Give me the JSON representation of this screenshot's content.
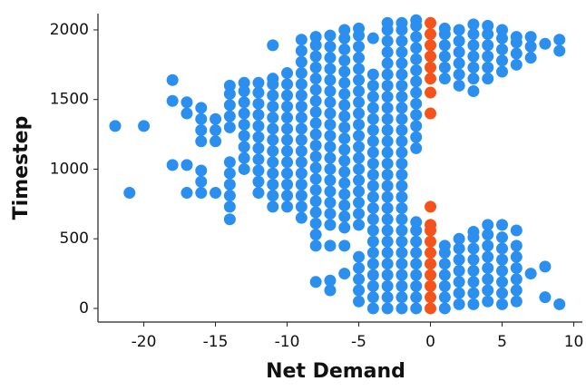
{
  "chart_data": {
    "type": "scatter",
    "xlabel": "Net Demand",
    "ylabel": "Timestep",
    "xlim": [
      -23.2,
      10.6
    ],
    "ylim": [
      -98,
      2117
    ],
    "xticks": [
      -20,
      -15,
      -10,
      -5,
      0,
      5,
      10
    ],
    "yticks": [
      0,
      500,
      1000,
      1500,
      2000
    ],
    "series": [
      {
        "color": "#2b8ff0",
        "x": [
          -22,
          -21,
          -20,
          -18,
          -18,
          -18,
          -17,
          -17,
          -17,
          -17,
          -16,
          -16,
          -16,
          -16,
          -16,
          -16,
          -16,
          -15,
          -15,
          -15,
          -15,
          -14,
          -14,
          -14,
          -14,
          -14,
          -14,
          -14,
          -14,
          -14,
          -14,
          -14,
          -13,
          -13,
          -13,
          -13,
          -13,
          -13,
          -13,
          -13,
          -13,
          -12,
          -12,
          -12,
          -12,
          -12,
          -12,
          -12,
          -12,
          -12,
          -12,
          -12,
          -11,
          -11,
          -11,
          -11,
          -11,
          -11,
          -11,
          -11,
          -11,
          -11,
          -11,
          -11,
          -11,
          -11,
          -10,
          -10,
          -10,
          -10,
          -10,
          -10,
          -10,
          -10,
          -10,
          -10,
          -10,
          -10,
          -10,
          -9,
          -9,
          -9,
          -9,
          -9,
          -9,
          -9,
          -9,
          -9,
          -9,
          -9,
          -9,
          -9,
          -9,
          -9,
          -9,
          -9,
          -8,
          -8,
          -8,
          -8,
          -8,
          -8,
          -8,
          -8,
          -8,
          -8,
          -8,
          -8,
          -8,
          -8,
          -8,
          -8,
          -8,
          -8,
          -8,
          -8,
          -8,
          -7,
          -7,
          -7,
          -7,
          -7,
          -7,
          -7,
          -7,
          -7,
          -7,
          -7,
          -7,
          -7,
          -7,
          -7,
          -7,
          -7,
          -7,
          -7,
          -7,
          -7,
          -6,
          -6,
          -6,
          -6,
          -6,
          -6,
          -6,
          -6,
          -6,
          -6,
          -6,
          -6,
          -6,
          -6,
          -6,
          -6,
          -6,
          -6,
          -6,
          -6,
          -6,
          -5,
          -5,
          -5,
          -5,
          -5,
          -5,
          -5,
          -5,
          -5,
          -5,
          -5,
          -5,
          -5,
          -5,
          -5,
          -5,
          -5,
          -5,
          -5,
          -5,
          -5,
          -5,
          -5,
          -5,
          -4,
          -4,
          -4,
          -4,
          -4,
          -4,
          -4,
          -4,
          -4,
          -4,
          -4,
          -4,
          -4,
          -4,
          -4,
          -4,
          -4,
          -4,
          -4,
          -4,
          -4,
          -4,
          -4,
          -3,
          -3,
          -3,
          -3,
          -3,
          -3,
          -3,
          -3,
          -3,
          -3,
          -3,
          -3,
          -3,
          -3,
          -3,
          -3,
          -3,
          -3,
          -3,
          -3,
          -3,
          -3,
          -3,
          -3,
          -3,
          -3,
          -3,
          -2,
          -2,
          -2,
          -2,
          -2,
          -2,
          -2,
          -2,
          -2,
          -2,
          -2,
          -2,
          -2,
          -2,
          -2,
          -2,
          -2,
          -2,
          -2,
          -2,
          -2,
          -2,
          -2,
          -2,
          -2,
          -2,
          -2,
          -1,
          -1,
          -1,
          -1,
          -1,
          -1,
          -1,
          -1,
          -1,
          -1,
          -1,
          -1,
          -1,
          -1,
          -1,
          -1,
          -1,
          -1,
          -1,
          -1,
          -1,
          -1,
          1,
          1,
          1,
          1,
          1,
          1,
          1,
          1,
          1,
          1,
          1,
          1,
          1,
          2,
          2,
          2,
          2,
          2,
          2,
          2,
          2,
          2,
          2,
          2,
          2,
          2,
          3,
          3,
          3,
          3,
          3,
          3,
          3,
          3,
          3,
          3,
          3,
          3,
          3,
          3,
          3,
          4,
          4,
          4,
          4,
          4,
          4,
          4,
          4,
          4,
          4,
          4,
          4,
          4,
          4,
          5,
          5,
          5,
          5,
          5,
          5,
          5,
          5,
          5,
          5,
          5,
          5,
          5,
          6,
          6,
          6,
          6,
          6,
          6,
          6,
          6,
          6,
          6,
          6,
          7,
          7,
          7,
          7,
          8,
          8,
          8,
          9,
          9,
          9
        ],
        "values": [
          1310,
          830,
          1310,
          1030,
          1490,
          1640,
          830,
          1030,
          1400,
          1480,
          830,
          910,
          990,
          1200,
          1280,
          1360,
          1440,
          830,
          1200,
          1280,
          1360,
          640,
          730,
          810,
          890,
          970,
          1050,
          1300,
          1380,
          1460,
          1540,
          1600,
          1000,
          1080,
          1160,
          1240,
          1320,
          1400,
          1480,
          1560,
          1620,
          830,
          910,
          990,
          1070,
          1150,
          1230,
          1310,
          1390,
          1470,
          1550,
          1620,
          730,
          810,
          890,
          970,
          1050,
          1130,
          1210,
          1290,
          1370,
          1450,
          1530,
          1610,
          1650,
          1890,
          730,
          810,
          890,
          970,
          1050,
          1130,
          1210,
          1290,
          1370,
          1450,
          1530,
          1610,
          1690,
          650,
          730,
          810,
          890,
          970,
          1050,
          1130,
          1210,
          1290,
          1370,
          1450,
          1530,
          1610,
          1690,
          1770,
          1850,
          1930,
          190,
          450,
          530,
          610,
          690,
          770,
          850,
          930,
          1010,
          1090,
          1170,
          1250,
          1330,
          1410,
          1490,
          1570,
          1650,
          1730,
          1810,
          1890,
          1950,
          130,
          200,
          450,
          600,
          680,
          760,
          840,
          920,
          1000,
          1080,
          1160,
          1240,
          1320,
          1400,
          1480,
          1560,
          1640,
          1720,
          1800,
          1880,
          1960,
          250,
          450,
          580,
          660,
          740,
          820,
          900,
          980,
          1060,
          1140,
          1220,
          1300,
          1380,
          1460,
          1540,
          1620,
          1700,
          1780,
          1860,
          1940,
          2000,
          50,
          130,
          210,
          290,
          370,
          600,
          680,
          760,
          840,
          920,
          1000,
          1080,
          1160,
          1240,
          1320,
          1400,
          1480,
          1560,
          1640,
          1720,
          1800,
          1880,
          1960,
          2010,
          0,
          80,
          160,
          240,
          320,
          400,
          480,
          560,
          640,
          720,
          800,
          880,
          960,
          1040,
          1120,
          1200,
          1280,
          1360,
          1440,
          1520,
          1600,
          1680,
          1940,
          0,
          80,
          160,
          240,
          320,
          400,
          480,
          560,
          640,
          720,
          800,
          880,
          960,
          1040,
          1120,
          1200,
          1280,
          1360,
          1440,
          1520,
          1600,
          1680,
          1760,
          1840,
          1920,
          2000,
          2050,
          0,
          80,
          160,
          240,
          320,
          400,
          480,
          560,
          640,
          720,
          800,
          880,
          960,
          1040,
          1120,
          1200,
          1280,
          1360,
          1440,
          1520,
          1600,
          1680,
          1760,
          1840,
          1920,
          2000,
          2050,
          0,
          80,
          160,
          240,
          320,
          400,
          480,
          560,
          620,
          1150,
          1230,
          1310,
          1390,
          1470,
          1550,
          1630,
          1710,
          1790,
          1870,
          1950,
          2030,
          2070,
          0,
          80,
          160,
          240,
          320,
          400,
          450,
          1650,
          1730,
          1810,
          1890,
          1970,
          2010,
          30,
          110,
          190,
          270,
          350,
          430,
          500,
          1600,
          1680,
          1760,
          1840,
          1920,
          2000,
          30,
          110,
          190,
          270,
          350,
          430,
          510,
          550,
          1560,
          1650,
          1730,
          1810,
          1890,
          1970,
          2040,
          50,
          130,
          210,
          290,
          370,
          450,
          530,
          600,
          1650,
          1730,
          1810,
          1890,
          1970,
          2030,
          30,
          110,
          190,
          270,
          350,
          430,
          510,
          600,
          1700,
          1780,
          1860,
          1940,
          2000,
          50,
          130,
          210,
          290,
          370,
          450,
          560,
          1750,
          1830,
          1910,
          1950,
          250,
          1800,
          1880,
          1950,
          80,
          300,
          1900,
          30,
          1850,
          1930
        ]
      },
      {
        "color": "#f5531c",
        "x": [
          0,
          0,
          0,
          0,
          0,
          0,
          0,
          0,
          0,
          0,
          0,
          0,
          0,
          0,
          0,
          0,
          0,
          0
        ],
        "values": [
          0,
          80,
          160,
          240,
          320,
          400,
          480,
          560,
          600,
          730,
          1400,
          1550,
          1650,
          1730,
          1810,
          1890,
          1970,
          2050
        ]
      }
    ]
  }
}
